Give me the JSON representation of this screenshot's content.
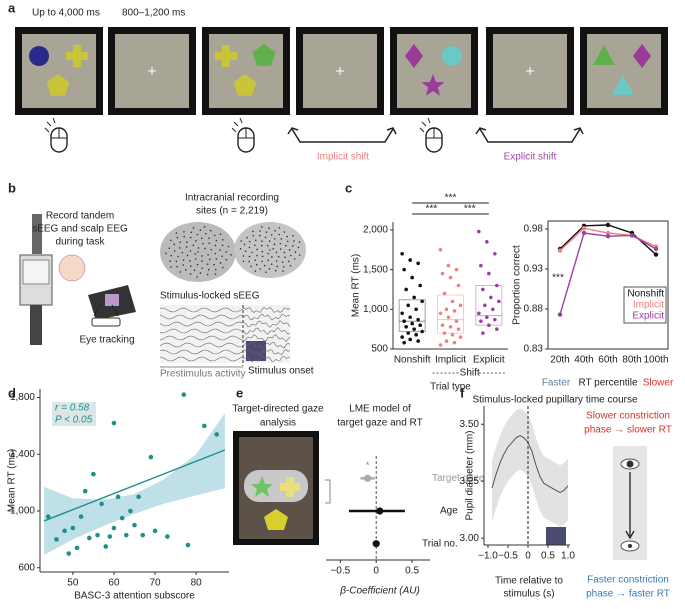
{
  "figure": {
    "panel_labels": [
      "a",
      "b",
      "c",
      "d",
      "e",
      "f"
    ],
    "a": {
      "timing": [
        "Up to 4,000 ms",
        "800–1,200 ms"
      ],
      "shifts": [
        "Implicit shift",
        "Explicit shift"
      ]
    },
    "b": {
      "record": [
        "Record tandem",
        "sEEG and scalp EEG",
        "during task"
      ],
      "eye_tracking": "Eye tracking",
      "sites": [
        "Intracranial recording",
        "sites (n = 2,219)"
      ],
      "seeg": "Stimulus-locked sEEG",
      "prestimulus": "Prestimulus activity",
      "onset": "Stimulus onset"
    },
    "e": {
      "gaze": [
        "Target-directed gaze",
        "analysis"
      ]
    },
    "f": {
      "slower": [
        "Slower constriction",
        "phase → slower RT"
      ],
      "faster": [
        "Faster constriction",
        "phase → faster RT"
      ]
    }
  },
  "chart_data": [
    {
      "type": "box",
      "ylabel": "Mean RT (ms)",
      "xlabel": "Trial type",
      "group_label": "Shift",
      "significance": [
        "***",
        "***",
        "***"
      ],
      "categories": [
        "Nonshift",
        "Implicit",
        "Explicit"
      ],
      "ylim": [
        500,
        2100
      ],
      "yticks": [
        500,
        {
          "value": 1000,
          "label": "1,000"
        },
        {
          "value": 1500,
          "label": "1,500"
        },
        {
          "value": 2000,
          "label": "2,000"
        }
      ],
      "series": [
        {
          "color": "#111111",
          "values": [
            1700,
            1620,
            1580,
            1500,
            1400,
            1300,
            1250,
            1150,
            1100,
            1050,
            1000,
            950,
            900,
            870,
            850,
            820,
            800,
            780,
            750,
            720,
            700,
            680,
            650,
            620,
            600,
            580
          ],
          "q1": 720,
          "median": 850,
          "q3": 1120
        },
        {
          "color": "#f08080",
          "values": [
            1750,
            1550,
            1500,
            1450,
            1400,
            1300,
            1200,
            1100,
            1050,
            1000,
            980,
            950,
            900,
            850,
            800,
            780,
            750,
            700,
            680,
            650,
            600,
            580,
            550
          ],
          "q1": 700,
          "median": 870,
          "q3": 1180
        },
        {
          "color": "#9b3fa6",
          "values": [
            1980,
            1850,
            1700,
            1550,
            1450,
            1300,
            1250,
            1150,
            1100,
            1050,
            1000,
            950,
            900,
            870,
            850,
            800,
            750,
            700
          ],
          "q1": 800,
          "median": 920,
          "q3": 1300
        }
      ]
    },
    {
      "type": "line",
      "ylabel": "Proportion correct",
      "xlabel": "RT percentile",
      "x_ends": [
        "Faster",
        "Slower"
      ],
      "annotation": "***",
      "legend": "lower right",
      "categories": [
        "20th",
        "40th",
        "60th",
        "80th",
        "100th"
      ],
      "ylim": [
        0.83,
        0.99
      ],
      "yticks": [
        0.83,
        0.88,
        0.93,
        0.98
      ],
      "series": [
        {
          "name": "Nonshift",
          "color": "#111111",
          "values": [
            0.955,
            0.984,
            0.985,
            0.975,
            0.948
          ]
        },
        {
          "name": "Implicit",
          "color": "#f08080",
          "values": [
            0.953,
            0.981,
            0.975,
            0.972,
            0.958
          ]
        },
        {
          "name": "Explicit",
          "color": "#9b3fa6",
          "values": [
            0.873,
            0.975,
            0.971,
            0.972,
            0.955
          ]
        }
      ]
    },
    {
      "type": "scatter",
      "xlabel": "BASC-3 attention subscore",
      "ylabel": "Mean RT (ms)",
      "annotations": [
        "r = 0.58",
        "P < 0.05"
      ],
      "color": "#1f8f8a",
      "band_color": "#bfe0e8",
      "xlim": [
        42,
        88
      ],
      "xticks": [
        50,
        60,
        70,
        80
      ],
      "ylim": [
        570,
        1860
      ],
      "yticks": [
        600,
        {
          "value": 1000,
          "label": "1,000"
        },
        {
          "value": 1400,
          "label": "1,400"
        },
        {
          "value": 1800,
          "label": "1,800"
        }
      ],
      "x": [
        44,
        46,
        48,
        49,
        50,
        51,
        52,
        53,
        54,
        55,
        56,
        57,
        58,
        59,
        60,
        60,
        61,
        62,
        63,
        64,
        65,
        66,
        67,
        69,
        70,
        73,
        77,
        78,
        82,
        85
      ],
      "values": [
        960,
        800,
        860,
        700,
        880,
        740,
        960,
        1140,
        810,
        1260,
        830,
        1050,
        750,
        820,
        1620,
        880,
        1100,
        950,
        830,
        1000,
        900,
        1100,
        830,
        1380,
        860,
        820,
        1820,
        760,
        1600,
        1540
      ],
      "fit_x": [
        43,
        87
      ],
      "fit_y": [
        930,
        1430
      ],
      "ci_x": [
        43,
        50,
        58,
        65,
        72,
        80,
        87
      ],
      "ci_lower": [
        690,
        800,
        900,
        980,
        1050,
        1110,
        1160
      ],
      "ci_upper": [
        1170,
        1090,
        1080,
        1120,
        1220,
        1400,
        1690
      ]
    },
    {
      "type": "forest",
      "title_lines": [
        "LME model of",
        "target gaze and RT"
      ],
      "xlabel": "β-Coefficient (AU)",
      "annotation": "*",
      "categories": [
        "Target gaze",
        "Age",
        "Trial no."
      ],
      "colors": [
        "#aaaaaa",
        "#111111",
        "#111111"
      ],
      "xlim": [
        -0.7,
        0.75
      ],
      "xticks": [
        {
          "value": -0.5,
          "label": "−0.5"
        },
        0,
        0.5
      ],
      "values": [
        -0.12,
        0.05,
        0
      ],
      "ci_low": [
        -0.22,
        -0.38,
        -0.03
      ],
      "ci_high": [
        -0.02,
        0.4,
        0.03
      ]
    },
    {
      "type": "line",
      "title": "Stimulus-locked pupillary time course",
      "ylabel": "Pupil diameter (mm)",
      "xlabel": [
        "Time relative to",
        "stimulus (s)"
      ],
      "color": "#555555",
      "band_color": "#e2e2e2",
      "xlim": [
        -1.1,
        1.05
      ],
      "xticks": [
        {
          "value": -1,
          "label": "−1.0"
        },
        {
          "value": -0.5,
          "label": "−0.5"
        },
        0,
        0.5,
        {
          "value": 1,
          "label": "1.0"
        }
      ],
      "ylim": [
        2.97,
        3.58
      ],
      "yticks": [
        {
          "value": 3,
          "label": "3.00"
        },
        3.25,
        {
          "value": 3.5,
          "label": "3.50"
        }
      ],
      "x": [
        -0.9,
        -0.8,
        -0.7,
        -0.6,
        -0.5,
        -0.4,
        -0.3,
        -0.2,
        -0.1,
        0,
        0.1,
        0.2,
        0.3,
        0.4,
        0.5,
        0.6,
        0.7,
        0.8,
        0.9,
        1.0
      ],
      "values": [
        3.22,
        3.28,
        3.33,
        3.37,
        3.4,
        3.42,
        3.44,
        3.45,
        3.44,
        3.42,
        3.38,
        3.32,
        3.27,
        3.24,
        3.23,
        3.22,
        3.21,
        3.2,
        3.21,
        3.23
      ],
      "lower": [
        3.07,
        3.13,
        3.18,
        3.22,
        3.25,
        3.27,
        3.29,
        3.3,
        3.29,
        3.27,
        3.23,
        3.17,
        3.12,
        3.09,
        3.08,
        3.07,
        3.06,
        3.05,
        3.06,
        3.08
      ],
      "upper": [
        3.34,
        3.4,
        3.45,
        3.49,
        3.52,
        3.54,
        3.56,
        3.57,
        3.56,
        3.54,
        3.5,
        3.44,
        3.39,
        3.36,
        3.35,
        3.34,
        3.33,
        3.32,
        3.33,
        3.35
      ]
    }
  ]
}
